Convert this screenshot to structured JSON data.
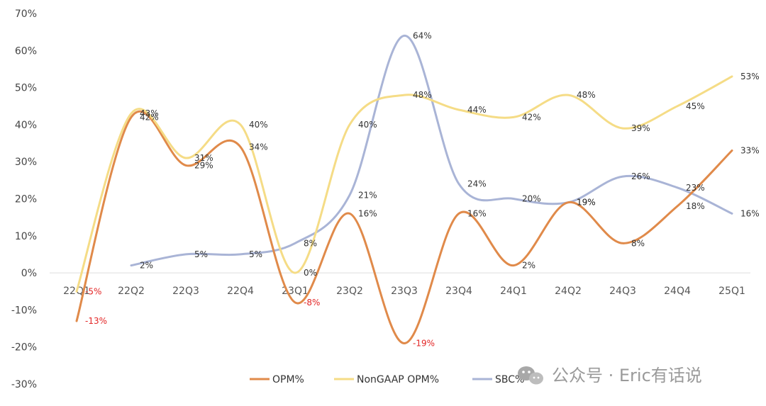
{
  "chart_data": {
    "type": "line",
    "categories": [
      "22Q1",
      "22Q2",
      "22Q3",
      "22Q4",
      "23Q1",
      "23Q2",
      "23Q3",
      "23Q4",
      "24Q1",
      "24Q2",
      "24Q3",
      "24Q4",
      "25Q1"
    ],
    "ylim": [
      -30,
      70
    ],
    "yticks": [
      -30,
      -20,
      -10,
      0,
      10,
      20,
      30,
      40,
      50,
      60,
      70
    ],
    "ytick_labels": [
      "-30%",
      "-20%",
      "-10%",
      "0%",
      "10%",
      "20%",
      "30%",
      "40%",
      "50%",
      "60%",
      "70%"
    ],
    "grid": false,
    "legend_position": "bottom-center",
    "series": [
      {
        "name": "OPM%",
        "color": "#E08A4A",
        "values": [
          -13,
          42,
          29,
          34,
          -8,
          16,
          -19,
          16,
          2,
          19,
          8,
          18,
          33
        ],
        "labels": [
          "-13%",
          "42%",
          "29%",
          "34%",
          "-8%",
          "16%",
          "-19%",
          "16%",
          "2%",
          "19%",
          "8%",
          "18%",
          "33%"
        ]
      },
      {
        "name": "NonGAAP OPM%",
        "color": "#F5DC86",
        "values": [
          -5,
          43,
          31,
          40,
          0,
          40,
          48,
          44,
          42,
          48,
          39,
          45,
          53
        ],
        "labels": [
          "-5%",
          "43%",
          "31%",
          "40%",
          "0%",
          "40%",
          "48%",
          "44%",
          "42%",
          "48%",
          "39%",
          "45%",
          "53%"
        ]
      },
      {
        "name": "SBC%",
        "color": "#A9B4D6",
        "values": [
          null,
          2,
          5,
          5,
          8,
          21,
          64,
          24,
          20,
          19,
          26,
          23,
          16
        ],
        "labels": [
          null,
          "2%",
          "5%",
          "5%",
          "8%",
          "21%",
          "64%",
          "24%",
          "20%",
          "19%",
          "26%",
          "23%",
          "16%"
        ]
      }
    ]
  },
  "watermark": {
    "text": "公众号 · Eric有话说",
    "icon": "wechat-icon"
  }
}
